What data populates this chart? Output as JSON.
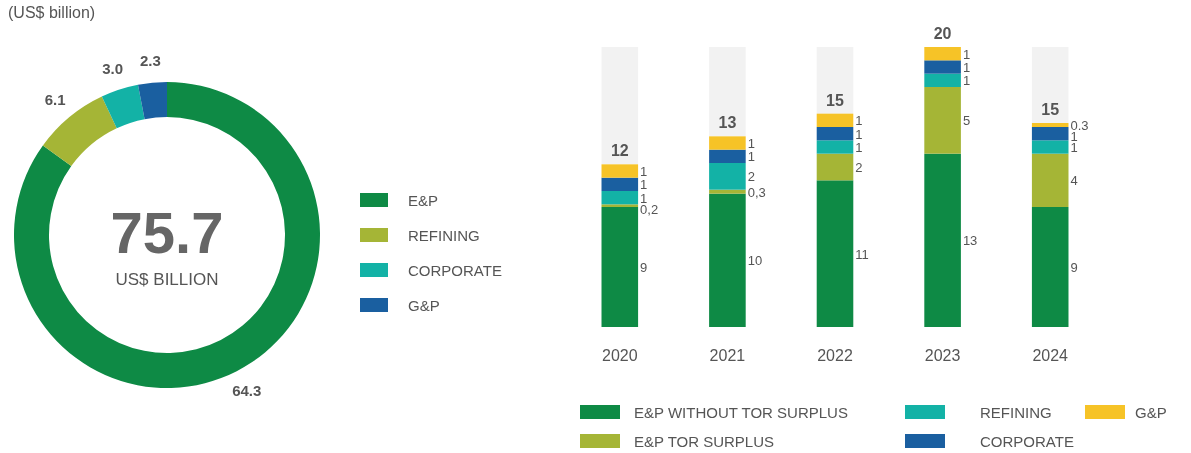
{
  "chart_data": [
    {
      "type": "donut",
      "annotations": [
        "(US$ billion)",
        "75.7",
        "US$ BILLION"
      ],
      "categories": [
        "E&P",
        "REFINING",
        "CORPORATE",
        "G&P"
      ],
      "values": [
        64.3,
        6.1,
        3.0,
        2.3
      ],
      "colors": [
        "#0e8a45",
        "#a5b536",
        "#13b2a6",
        "#1a5fa0"
      ],
      "value_labels": [
        "64.3",
        "6.1",
        "3.0",
        "2.3"
      ],
      "legend": "right"
    },
    {
      "type": "bar",
      "stacked": true,
      "categories": [
        "2020",
        "2021",
        "2022",
        "2023",
        "2024"
      ],
      "legend": "bottom",
      "totals": [
        "12",
        "13",
        "15",
        "20",
        "15"
      ],
      "series": [
        {
          "name": "E&P WITHOUT TOR SURPLUS",
          "color": "#0e8a45",
          "values": [
            9,
            10,
            11,
            13,
            9
          ],
          "value_labels": [
            "9",
            "10",
            "11",
            "13",
            "9"
          ]
        },
        {
          "name": "E&P TOR SURPLUS",
          "color": "#a5b536",
          "values": [
            0.2,
            0.3,
            2,
            5,
            4
          ],
          "value_labels": [
            "0,2",
            "0,3",
            "2",
            "5",
            "4"
          ]
        },
        {
          "name": "REFINING",
          "color": "#13b2a6",
          "values": [
            1,
            2,
            1,
            1,
            1
          ],
          "value_labels": [
            "1",
            "2",
            "1",
            "1",
            "1"
          ]
        },
        {
          "name": "CORPORATE",
          "color": "#1a5fa0",
          "values": [
            1,
            1,
            1,
            1,
            1
          ],
          "value_labels": [
            "1",
            "1",
            "1",
            "1",
            "1"
          ]
        },
        {
          "name": "G&P",
          "color": "#f6c327",
          "values": [
            1,
            1,
            1,
            1,
            0.3
          ],
          "value_labels": [
            "1",
            "1",
            "1",
            "1",
            "0.3"
          ]
        }
      ]
    }
  ]
}
